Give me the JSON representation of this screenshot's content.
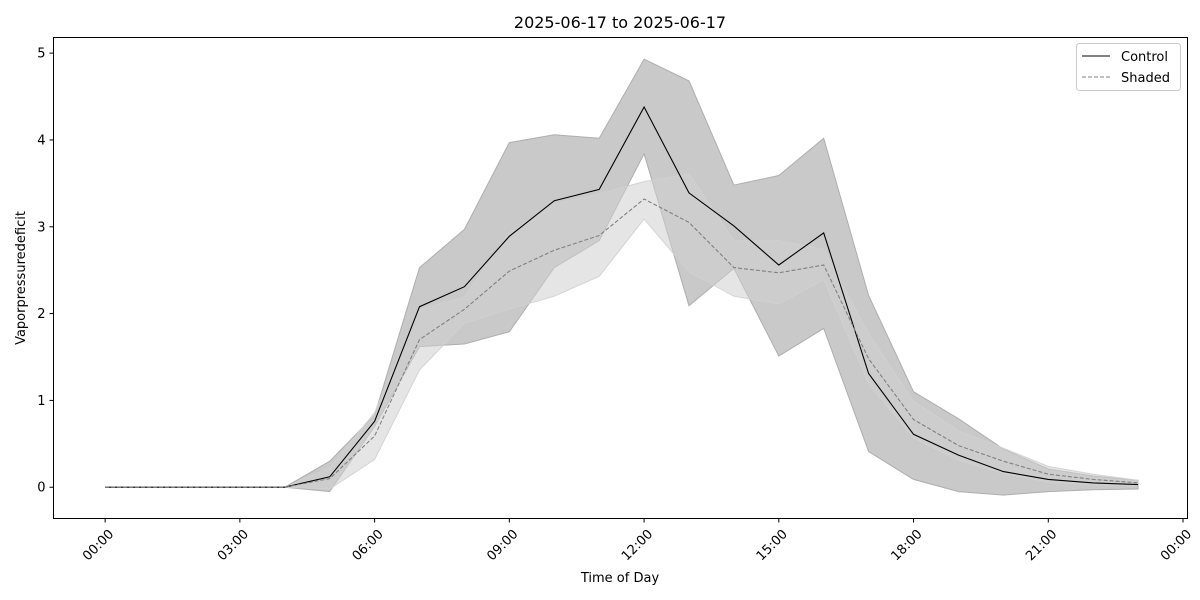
{
  "chart_data": {
    "type": "line",
    "title": "2025-06-17 to 2025-06-17",
    "xlabel": "Time of Day",
    "ylabel": "Vaporpressuredeficit",
    "x_ticks": [
      "00:00",
      "03:00",
      "06:00",
      "09:00",
      "12:00",
      "15:00",
      "18:00",
      "21:00",
      "00:00"
    ],
    "y_ticks": [
      "0",
      "1",
      "2",
      "3",
      "4",
      "5"
    ],
    "xlim_hours": [
      -1.15,
      24.1
    ],
    "ylim": [
      -0.36,
      5.18
    ],
    "legend_position": "top-right",
    "x_hours": [
      0,
      1,
      2,
      3,
      4,
      5,
      6,
      7,
      8,
      9,
      10,
      11,
      12,
      13,
      14,
      15,
      16,
      17,
      18,
      19,
      20,
      21,
      22,
      23
    ],
    "series": [
      {
        "name": "Control",
        "style": "solid",
        "color": "#000000",
        "band_color": "#a8a8a8",
        "mean": [
          0,
          0,
          0,
          0,
          0,
          0.12,
          0.76,
          2.08,
          2.31,
          2.89,
          3.3,
          3.43,
          4.38,
          3.39,
          3.01,
          2.56,
          2.93,
          1.31,
          0.61,
          0.37,
          0.18,
          0.09,
          0.05,
          0.03
        ],
        "lower": [
          0,
          0,
          0,
          0,
          0,
          -0.05,
          0.7,
          1.62,
          1.65,
          1.79,
          2.53,
          2.84,
          3.84,
          2.09,
          2.52,
          1.51,
          1.83,
          0.41,
          0.09,
          -0.05,
          -0.09,
          -0.05,
          -0.03,
          -0.02
        ],
        "upper": [
          0,
          0,
          0,
          0,
          0,
          0.3,
          0.83,
          2.53,
          2.97,
          3.97,
          4.06,
          4.02,
          4.93,
          4.68,
          3.48,
          3.59,
          4.02,
          2.21,
          1.1,
          0.79,
          0.44,
          0.21,
          0.13,
          0.08
        ]
      },
      {
        "name": "Shaded",
        "style": "dashed",
        "color": "#808080",
        "band_color": "#d0d0d0",
        "mean": [
          0,
          0,
          0,
          0,
          0,
          0.1,
          0.59,
          1.7,
          2.05,
          2.49,
          2.73,
          2.9,
          3.32,
          3.05,
          2.53,
          2.47,
          2.56,
          1.48,
          0.78,
          0.48,
          0.3,
          0.15,
          0.09,
          0.05
        ],
        "lower": [
          0,
          0,
          0,
          0,
          0,
          -0.02,
          0.32,
          1.35,
          1.89,
          2.05,
          2.2,
          2.43,
          3.09,
          2.48,
          2.2,
          2.11,
          2.39,
          1.19,
          0.57,
          0.31,
          0.16,
          0.06,
          0.03,
          0.02
        ],
        "upper": [
          0,
          0,
          0,
          0,
          0,
          0.22,
          0.86,
          2.05,
          2.19,
          2.93,
          3.26,
          3.38,
          3.52,
          3.61,
          2.84,
          2.84,
          2.74,
          1.77,
          0.99,
          0.65,
          0.45,
          0.24,
          0.15,
          0.08
        ]
      }
    ]
  }
}
